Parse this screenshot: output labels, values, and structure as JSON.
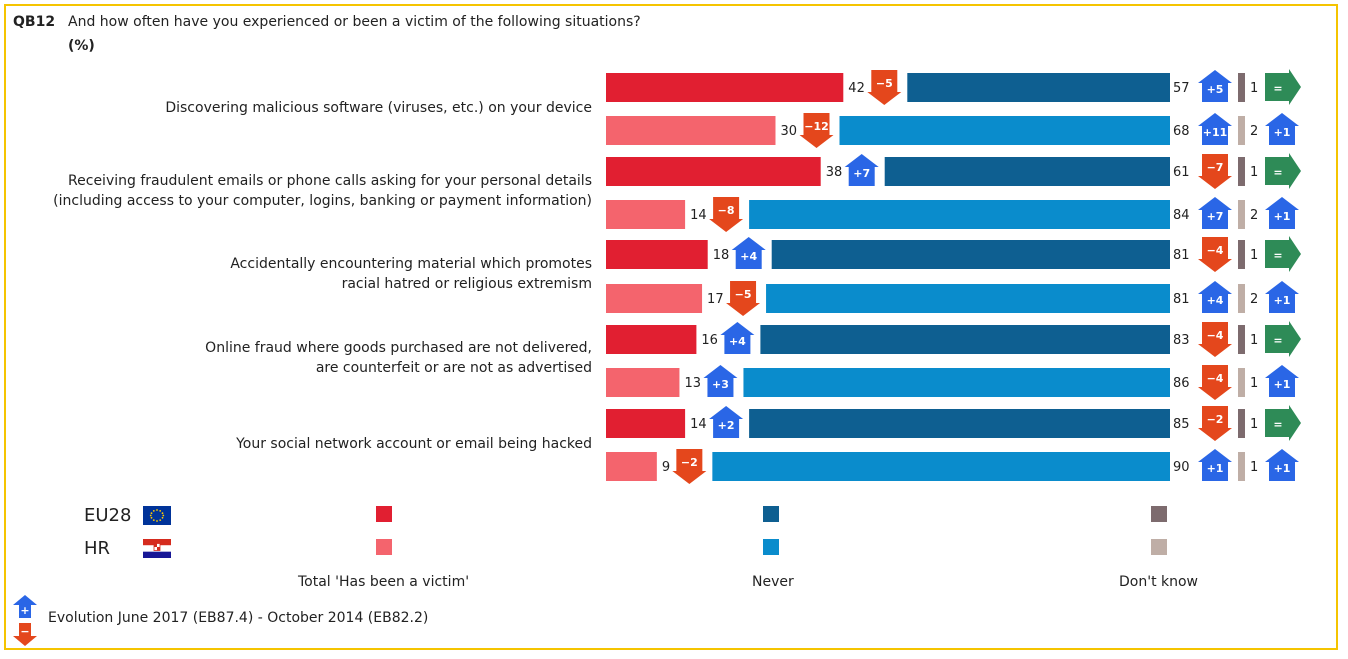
{
  "question": {
    "code": "QB12",
    "text": "And how often have you experienced or been a victim of the following situations?",
    "unit": "(%)"
  },
  "colors": {
    "eu_victim": "#e11f31",
    "hr_victim": "#f4646d",
    "eu_never": "#0e5f91",
    "hr_never": "#0a8ccc",
    "eu_dk": "#7d6b6e",
    "hr_dk": "#bfaea6",
    "up": "#2a66e6",
    "down": "#e4471c",
    "same": "#2e8b57"
  },
  "legend": {
    "countries": [
      "EU28",
      "HR"
    ],
    "series": [
      "Total 'Has been a victim'",
      "Never",
      "Don't know"
    ],
    "evolution": "Evolution June 2017 (EB87.4)  - October 2014 (EB82.2)",
    "up_symbol": "+",
    "down_symbol": "−"
  },
  "chart_data": {
    "type": "bar",
    "stacked": true,
    "orientation": "horizontal",
    "categories": [
      "Discovering malicious software (viruses, etc.) on your device",
      "Receiving fraudulent emails or phone calls asking for your personal details\n(including access to your computer, logins, banking or payment information)",
      "Accidentally encountering material which promotes\nracial hatred or religious extremism",
      "Online fraud where goods purchased are not delivered,\nare counterfeit or are not as advertised",
      "Your social network account or email being hacked"
    ],
    "series": [
      {
        "name": "EU28 Total 'Has been a victim'",
        "values": [
          42,
          38,
          18,
          16,
          14
        ],
        "evolution": [
          "-5",
          "+7",
          "+4",
          "+4",
          "+2"
        ]
      },
      {
        "name": "EU28 Never",
        "values": [
          57,
          61,
          81,
          83,
          85
        ],
        "evolution": [
          "+5",
          "-7",
          "-4",
          "-4",
          "-2"
        ]
      },
      {
        "name": "EU28 Don't know",
        "values": [
          1,
          1,
          1,
          1,
          1
        ],
        "evolution": [
          "=",
          "=",
          "=",
          "=",
          "="
        ]
      },
      {
        "name": "HR Total 'Has been a victim'",
        "values": [
          30,
          14,
          17,
          13,
          9
        ],
        "evolution": [
          "-12",
          "-8",
          "-5",
          "+3",
          "-2"
        ]
      },
      {
        "name": "HR Never",
        "values": [
          68,
          84,
          81,
          86,
          90
        ],
        "evolution": [
          "+11",
          "+7",
          "+4",
          "-4",
          "+1"
        ]
      },
      {
        "name": "HR Don't know",
        "values": [
          2,
          2,
          2,
          1,
          1
        ],
        "evolution": [
          "+1",
          "+1",
          "+1",
          "+1",
          "+1"
        ]
      }
    ]
  }
}
